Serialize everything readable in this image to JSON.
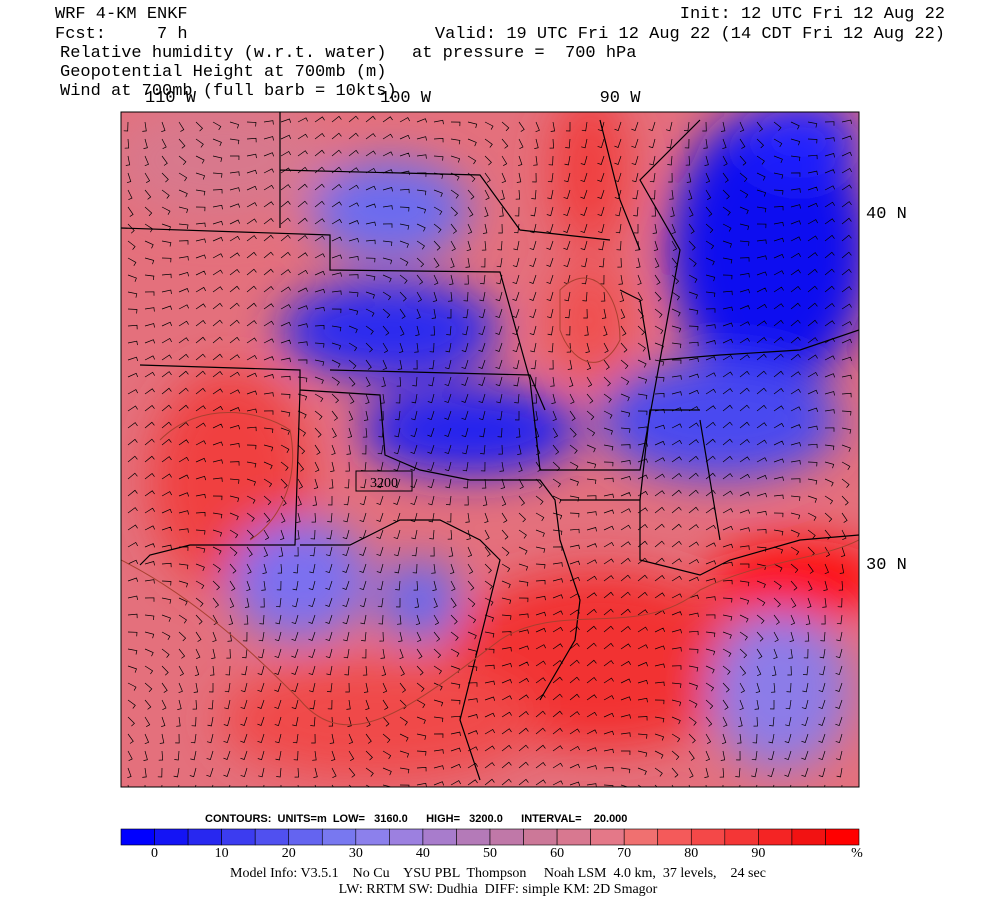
{
  "header": {
    "model": "WRF 4-KM ENKF",
    "init": "Init: 12 UTC Fri 12 Aug 22",
    "forecast": "Fcst:     7 h",
    "valid": "Valid: 19 UTC Fri 12 Aug 22 (14 CDT Fri 12 Aug 22)",
    "field_1": "Relative humidity (w.r.t. water)",
    "pressure": "at pressure =  700 hPa",
    "field_2": "Geopotential Height at 700mb (m)",
    "field_3": "Wind at 700mb (full barb = 10kts)"
  },
  "map": {
    "longitude_labels": [
      "110 W",
      "100 W",
      "90 W"
    ],
    "latitude_labels": [
      "40 N",
      "30 N"
    ],
    "contour_label": "3200"
  },
  "contours": "CONTOURS:  UNITS=m  LOW=   3160.0      HIGH=   3200.0      INTERVAL=    20.000",
  "colorbar": {
    "labels": [
      "0",
      "10",
      "20",
      "30",
      "40",
      "50",
      "60",
      "70",
      "80",
      "90",
      "%"
    ],
    "colors": [
      "#0000ff",
      "#1414f5",
      "#2828f0",
      "#3c3cf0",
      "#5050f0",
      "#6464f0",
      "#7878f0",
      "#8c80ec",
      "#9c80e0",
      "#a87ccc",
      "#b47ab8",
      "#c078a8",
      "#cc7898",
      "#d87890",
      "#e47888",
      "#f07070",
      "#f45a5a",
      "#f44848",
      "#f43636",
      "#f42424",
      "#f21212",
      "#ff0000"
    ]
  },
  "footer": {
    "model_info": "Model Info: V3.5.1    No Cu    YSU PBL  Thompson     Noah LSM  4.0 km,  37 levels,    24 sec",
    "physics": "LW: RRTM SW: Dudhia  DIFF: simple KM: 2D Smagor"
  }
}
